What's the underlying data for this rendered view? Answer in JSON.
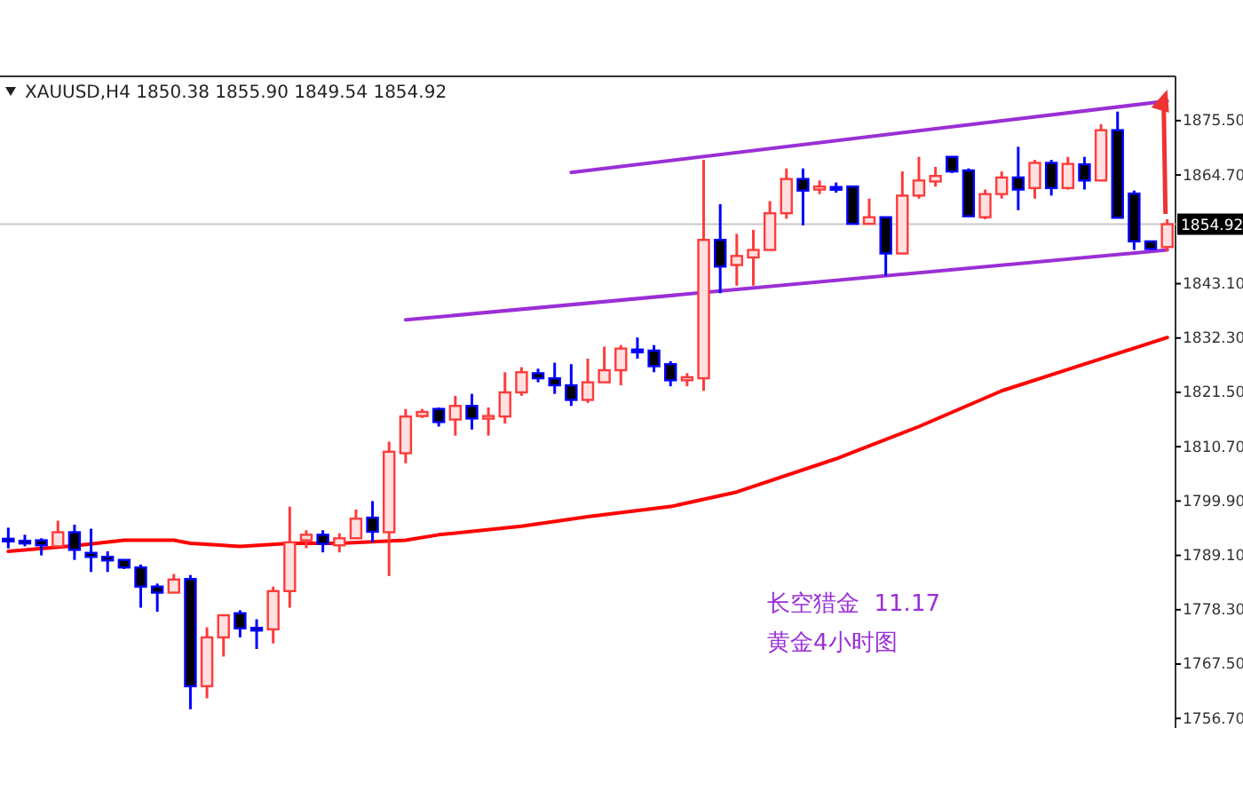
{
  "chart_data": {
    "type": "candlestick",
    "title": "XAUUSD,H4  1850.38 1855.90 1849.54 1854.92",
    "categories": [
      null,
      null,
      null,
      null,
      null,
      null,
      null,
      null,
      null,
      null,
      null,
      null,
      null,
      null,
      null,
      null,
      null,
      null,
      null,
      null,
      null,
      null,
      null,
      null,
      null,
      null,
      null,
      null,
      null,
      null,
      null,
      null,
      null,
      null,
      null,
      null,
      null,
      null,
      null,
      null,
      null,
      null,
      null,
      null,
      null,
      null,
      null,
      null,
      null,
      null,
      null,
      null,
      null,
      null,
      null,
      null,
      null,
      null,
      null,
      null,
      null,
      null,
      null,
      null,
      null,
      null,
      null,
      null,
      null,
      null,
      null
    ],
    "ohlc": [
      [
        1792.4,
        1794.6,
        1790.5,
        1792.3
      ],
      [
        1792.0,
        1793.2,
        1790.9,
        1791.9
      ],
      [
        1792.1,
        1792.5,
        1789.1,
        1791.1
      ],
      [
        1790.9,
        1796.0,
        1790.9,
        1793.7
      ],
      [
        1793.7,
        1795.2,
        1788.2,
        1790.2
      ],
      [
        1789.6,
        1794.4,
        1785.8,
        1788.8
      ],
      [
        1788.8,
        1789.9,
        1785.8,
        1788.1
      ],
      [
        1788.2,
        1788.2,
        1786.4,
        1786.7
      ],
      [
        1786.7,
        1787.3,
        1778.7,
        1782.9
      ],
      [
        1782.9,
        1783.5,
        1777.9,
        1781.7
      ],
      [
        1781.7,
        1785.4,
        1781.7,
        1784.3
      ],
      [
        1784.4,
        1785.2,
        1758.5,
        1763.1
      ],
      [
        1763.1,
        1774.8,
        1760.7,
        1772.8
      ],
      [
        1772.8,
        1777.2,
        1769.0,
        1777.2
      ],
      [
        1777.6,
        1778.2,
        1772.8,
        1774.6
      ],
      [
        1774.7,
        1776.4,
        1770.5,
        1774.6
      ],
      [
        1774.4,
        1782.9,
        1771.6,
        1782.0
      ],
      [
        1782.0,
        1798.8,
        1778.7,
        1791.7
      ],
      [
        1792.1,
        1794.1,
        1790.5,
        1793.2
      ],
      [
        1793.2,
        1794.1,
        1789.7,
        1791.4
      ],
      [
        1791.1,
        1793.5,
        1789.7,
        1792.5
      ],
      [
        1792.5,
        1798.2,
        1792.5,
        1796.4
      ],
      [
        1796.6,
        1799.9,
        1791.7,
        1793.8
      ],
      [
        1793.7,
        1811.7,
        1785.0,
        1809.7
      ],
      [
        1809.4,
        1818.2,
        1807.4,
        1816.7
      ],
      [
        1816.8,
        1818.2,
        1816.4,
        1817.6
      ],
      [
        1818.2,
        1818.5,
        1814.7,
        1815.6
      ],
      [
        1816.1,
        1820.8,
        1812.9,
        1818.8
      ],
      [
        1818.8,
        1821.2,
        1814.1,
        1816.3
      ],
      [
        1816.3,
        1818.5,
        1812.9,
        1816.8
      ],
      [
        1816.7,
        1825.5,
        1815.3,
        1821.5
      ],
      [
        1821.5,
        1826.5,
        1820.8,
        1825.5
      ],
      [
        1825.3,
        1826.2,
        1823.5,
        1824.3
      ],
      [
        1824.3,
        1827.4,
        1821.2,
        1822.9
      ],
      [
        1822.9,
        1827.1,
        1818.8,
        1820.0
      ],
      [
        1820.0,
        1828.2,
        1819.4,
        1823.5
      ],
      [
        1823.5,
        1830.6,
        1823.5,
        1825.9
      ],
      [
        1825.9,
        1830.9,
        1822.9,
        1830.2
      ],
      [
        1830.0,
        1832.4,
        1828.2,
        1830.0
      ],
      [
        1829.8,
        1830.9,
        1825.5,
        1826.7
      ],
      [
        1827.1,
        1827.7,
        1822.7,
        1823.9
      ],
      [
        1823.9,
        1825.3,
        1822.7,
        1824.5
      ],
      [
        1824.3,
        1867.7,
        1821.8,
        1851.8
      ],
      [
        1851.8,
        1858.9,
        1841.2,
        1846.5
      ],
      [
        1846.8,
        1853.0,
        1842.7,
        1848.6
      ],
      [
        1848.3,
        1853.8,
        1842.7,
        1849.8
      ],
      [
        1849.8,
        1859.5,
        1849.8,
        1857.1
      ],
      [
        1857.1,
        1866.0,
        1856.0,
        1863.9
      ],
      [
        1863.9,
        1866.0,
        1854.7,
        1861.6
      ],
      [
        1861.8,
        1863.6,
        1860.9,
        1862.4
      ],
      [
        1862.3,
        1863.2,
        1861.2,
        1862.3
      ],
      [
        1862.4,
        1862.4,
        1855.0,
        1855.0
      ],
      [
        1855.0,
        1860.0,
        1855.0,
        1856.3
      ],
      [
        1856.3,
        1856.3,
        1844.7,
        1849.1
      ],
      [
        1849.1,
        1865.4,
        1849.1,
        1860.6
      ],
      [
        1860.6,
        1868.3,
        1860.0,
        1863.6
      ],
      [
        1863.4,
        1866.3,
        1862.4,
        1864.5
      ],
      [
        1868.3,
        1868.3,
        1865.1,
        1865.4
      ],
      [
        1865.6,
        1866.0,
        1856.5,
        1856.5
      ],
      [
        1856.3,
        1861.8,
        1855.9,
        1860.9
      ],
      [
        1860.9,
        1865.4,
        1860.0,
        1864.2
      ],
      [
        1864.2,
        1870.3,
        1857.7,
        1861.8
      ],
      [
        1862.1,
        1867.7,
        1860.0,
        1867.1
      ],
      [
        1867.1,
        1867.7,
        1860.6,
        1862.1
      ],
      [
        1862.1,
        1868.3,
        1861.8,
        1866.9
      ],
      [
        1866.8,
        1868.3,
        1861.8,
        1863.6
      ],
      [
        1863.6,
        1874.8,
        1863.6,
        1873.6
      ],
      [
        1873.6,
        1877.3,
        1856.2,
        1856.2
      ],
      [
        1861.0,
        1861.6,
        1849.8,
        1851.5
      ],
      [
        1851.5,
        1851.5,
        1849.8,
        1850.0
      ],
      [
        1850.38,
        1855.9,
        1849.54,
        1854.92
      ]
    ],
    "colors": [
      "#0000ff",
      "#0000ff",
      "#0000ff",
      "#ff3b3b",
      "#0000ff",
      "#0000ff",
      "#0000ff",
      "#0000ff",
      "#0000ff",
      "#0000ff",
      "#ff3b3b",
      "#0000ff",
      "#ff3b3b",
      "#ff3b3b",
      "#0000ff",
      "#0000ff",
      "#ff3b3b",
      "#ff3b3b",
      "#ff3b3b",
      "#0000ff",
      "#ff3b3b",
      "#ff3b3b",
      "#0000ff",
      "#ff3b3b",
      "#ff3b3b",
      "#ff3b3b",
      "#0000ff",
      "#ff3b3b",
      "#0000ff",
      "#ff3b3b",
      "#ff3b3b",
      "#ff3b3b",
      "#0000ff",
      "#0000ff",
      "#0000ff",
      "#ff3b3b",
      "#ff3b3b",
      "#ff3b3b",
      "#0000ff",
      "#0000ff",
      "#0000ff",
      "#ff3b3b",
      "#ff3b3b",
      "#0000ff",
      "#ff3b3b",
      "#ff3b3b",
      "#ff3b3b",
      "#ff3b3b",
      "#0000ff",
      "#ff3b3b",
      "#0000ff",
      "#0000ff",
      "#ff3b3b",
      "#0000ff",
      "#ff3b3b",
      "#ff3b3b",
      "#ff3b3b",
      "#0000ff",
      "#0000ff",
      "#ff3b3b",
      "#ff3b3b",
      "#0000ff",
      "#ff3b3b",
      "#0000ff",
      "#ff3b3b",
      "#0000ff",
      "#ff3b3b",
      "#0000ff",
      "#0000ff",
      "#0000ff",
      "#ff3b3b"
    ],
    "series": [
      {
        "type": "line",
        "color": "#ff0000",
        "values": [
          1789.9,
          null,
          null,
          null,
          1791.0,
          null,
          null,
          1792.1,
          null,
          null,
          1792.1,
          1791.5,
          null,
          null,
          1790.9,
          null,
          null,
          1791.5,
          null,
          null,
          1791.5,
          null,
          null,
          null,
          1792.1,
          null,
          1793.2,
          null,
          null,
          null,
          null,
          1794.9,
          null,
          null,
          null,
          1796.8,
          null,
          null,
          null,
          null,
          1798.8,
          null,
          null,
          null,
          1801.7,
          null,
          null,
          null,
          null,
          null,
          1808.3,
          null,
          null,
          null,
          null,
          1814.7,
          null,
          null,
          null,
          null,
          1821.8,
          null,
          null,
          null,
          null,
          1827.1,
          null,
          null,
          null,
          null,
          1832.4
        ]
      },
      {
        "type": "line",
        "color": "#9a2fd6",
        "values": [
          null,
          null,
          null,
          null,
          null,
          null,
          null,
          null,
          null,
          null,
          null,
          null,
          null,
          null,
          null,
          null,
          null,
          null,
          null,
          null,
          null,
          null,
          null,
          null,
          null,
          null,
          null,
          null,
          null,
          null,
          null,
          null,
          null,
          null,
          1865.2,
          null,
          null,
          null,
          null,
          null,
          null,
          null,
          null,
          null,
          null,
          null,
          null,
          null,
          null,
          null,
          null,
          null,
          null,
          null,
          null,
          null,
          null,
          null,
          null,
          null,
          null,
          null,
          null,
          null,
          null,
          null,
          null,
          null,
          null,
          null,
          1879.4
        ]
      },
      {
        "type": "line",
        "color": "#9a2fd6",
        "values": [
          null,
          null,
          null,
          null,
          null,
          null,
          null,
          null,
          null,
          null,
          null,
          null,
          null,
          null,
          null,
          null,
          null,
          null,
          null,
          null,
          null,
          null,
          null,
          null,
          1835.9,
          null,
          null,
          null,
          null,
          null,
          null,
          null,
          null,
          null,
          null,
          null,
          null,
          null,
          null,
          null,
          null,
          null,
          null,
          null,
          null,
          null,
          null,
          null,
          null,
          null,
          null,
          null,
          null,
          null,
          null,
          null,
          null,
          null,
          null,
          null,
          null,
          null,
          null,
          null,
          null,
          null,
          null,
          null,
          null,
          null,
          1849.8
        ]
      }
    ],
    "ylim": [
      1754.8,
      1884.3
    ],
    "yticks": [
      {
        "value": 1756.7,
        "label": "1756.70"
      },
      {
        "value": 1767.5,
        "label": "1767.50"
      },
      {
        "value": 1778.3,
        "label": "1778.30"
      },
      {
        "value": 1789.1,
        "label": "1789.10"
      },
      {
        "value": 1799.9,
        "label": "1799.90"
      },
      {
        "value": 1810.7,
        "label": "1810.70"
      },
      {
        "value": 1821.5,
        "label": "1821.50"
      },
      {
        "value": 1832.3,
        "label": "1832.30"
      },
      {
        "value": 1843.1,
        "label": "1843.10"
      },
      {
        "value": 1864.7,
        "label": "1864.70"
      },
      {
        "value": 1875.5,
        "label": "1875.50"
      }
    ],
    "ref_lines": [
      {
        "axis": "y",
        "value": 1854.92,
        "label": "1854.92",
        "color": "#c8c8c8"
      }
    ],
    "annotations": [
      "长空猎金  11.17",
      "黄金4小时图"
    ],
    "tick_labels": "y"
  }
}
